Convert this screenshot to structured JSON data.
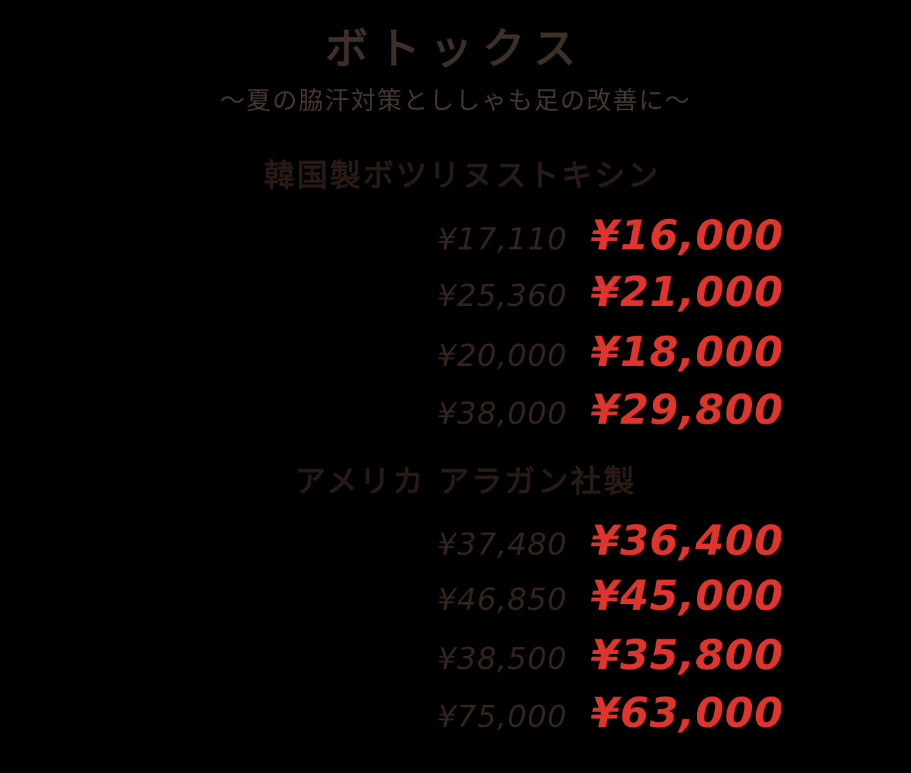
{
  "page": {
    "background_color": "#000000",
    "title": "ボトックス",
    "subtitle": "～夏の脇汗対策とししゃも足の改善に～"
  },
  "colors": {
    "title_text": "#3e2f29",
    "subtitle_text": "#453731",
    "section_heading_text": "#281b15",
    "old_price_text": "#33241e",
    "sale_price_text": "#e0352c"
  },
  "sections": [
    {
      "heading": "韓国製ボツリヌストキシン",
      "rows": [
        {
          "old_price": "¥17,110",
          "new_price": "¥16,000"
        },
        {
          "old_price": "¥25,360",
          "new_price": "¥21,000"
        },
        {
          "old_price": "¥20,000",
          "new_price": "¥18,000"
        },
        {
          "old_price": "¥38,000",
          "new_price": "¥29,800"
        }
      ]
    },
    {
      "heading": "アメリカ アラガン社製",
      "rows": [
        {
          "old_price": "¥37,480",
          "new_price": "¥36,400"
        },
        {
          "old_price": "¥46,850",
          "new_price": "¥45,000"
        },
        {
          "old_price": "¥38,500",
          "new_price": "¥35,800"
        },
        {
          "old_price": "¥75,000",
          "new_price": "¥63,000"
        }
      ]
    }
  ]
}
